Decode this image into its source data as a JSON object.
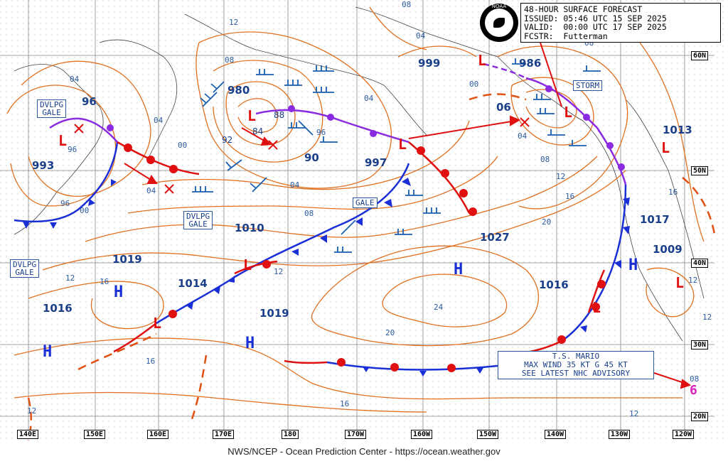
{
  "header": {
    "title": "48-HOUR SURFACE FORECAST",
    "issued": "ISSUED: 05:46 UTC 15 SEP 2025",
    "valid": "VALID:  00:00 UTC 17 SEP 2025",
    "forecaster": "FCSTR:  Futterman"
  },
  "logo_text": "NOAA",
  "footer": "NWS/NCEP - Ocean Prediction Center - https://ocean.weather.gov",
  "longitude_labels": [
    "140E",
    "150E",
    "160E",
    "170E",
    "180",
    "170W",
    "160W",
    "150W",
    "140W",
    "130W",
    "120W"
  ],
  "latitude_labels": [
    "60N",
    "50N",
    "40N",
    "30N",
    "20N"
  ],
  "warning_labels": {
    "dvlpg_gale_nw": [
      "DVLPG",
      "GALE"
    ],
    "dvlpg_gale_w": [
      "DVLPG",
      "GALE"
    ],
    "dvlpg_gale_c": [
      "DVLPG",
      "GALE"
    ],
    "gale": "GALE",
    "storm": "STORM"
  },
  "mario_box": [
    "T.S. MARIO",
    "MAX WIND 35 KT G 45 KT",
    "SEE LATEST NHC ADVISORY"
  ],
  "pressure_centers": [
    {
      "type": "L",
      "value": "96"
    },
    {
      "type": "L",
      "value": "993"
    },
    {
      "type": "L",
      "value": "980"
    },
    {
      "type": "L",
      "value": "997"
    },
    {
      "type": "L",
      "value": "999"
    },
    {
      "type": "L",
      "value": "986"
    },
    {
      "type": "L",
      "value": "06"
    },
    {
      "type": "L",
      "value": "1013"
    },
    {
      "type": "L",
      "value": "1009"
    },
    {
      "type": "L",
      "value": "1010"
    },
    {
      "type": "L",
      "value": "1014"
    },
    {
      "type": "H",
      "value": "1019"
    },
    {
      "type": "H",
      "value": "1016"
    },
    {
      "type": "H",
      "value": "1019"
    },
    {
      "type": "H",
      "value": "1027"
    },
    {
      "type": "H",
      "value": "1016"
    },
    {
      "type": "H",
      "value": "1017"
    },
    {
      "type": "L",
      "value": "90"
    },
    {
      "type": "L",
      "value": "84"
    },
    {
      "type": "L",
      "value": "88"
    },
    {
      "type": "L",
      "value": "92"
    }
  ],
  "isobar_labels": [
    "04",
    "08",
    "12",
    "16",
    "20",
    "24",
    "00",
    "96",
    "92",
    "88",
    "84"
  ],
  "colors": {
    "isobar": "#e07020",
    "front_cold": "#1a2fd6",
    "front_warm": "#e01010",
    "occluded": "#8a2be2",
    "label": "#2c5aa0",
    "grid": "#777777"
  }
}
